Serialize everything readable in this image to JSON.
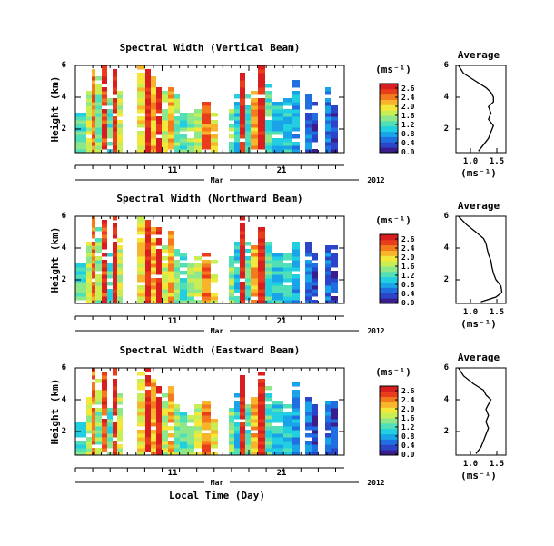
{
  "figure": {
    "xlabel": "Local Time (Day)"
  },
  "colorbar": {
    "unit_label": "(ms⁻¹)",
    "ticks": [
      "2.6",
      "2.4",
      "2.0",
      "1.6",
      "1.2",
      "0.8",
      "0.4",
      "0.0"
    ],
    "colors": [
      "#3b1c8c",
      "#2b45c8",
      "#1f6fe0",
      "#19a3e8",
      "#22cfe0",
      "#4fe0b8",
      "#8ee88a",
      "#c9ee55",
      "#f3e83a",
      "#f8b42a",
      "#f47a1e",
      "#ea3d1c",
      "#d81e1e"
    ]
  },
  "time_axis": {
    "ticks": [
      "11",
      "21"
    ],
    "month": "Mar",
    "year": "2012"
  },
  "chart_data": [
    {
      "type": "heatmap",
      "title": "Spectral Width (Vertical Beam)",
      "ylabel": "Height (km)",
      "y_ticks": [
        "6",
        "4",
        "2"
      ],
      "ylim": [
        0.5,
        6
      ],
      "xlim_days": [
        1,
        32
      ],
      "avg_profile": {
        "title": "Average",
        "xlabel": "(ms⁻¹)",
        "x_ticks": [
          "1.0",
          "1.5"
        ],
        "y_ticks": [
          "6",
          "4",
          "2"
        ],
        "height_km": [
          6.0,
          5.5,
          5.0,
          4.6,
          4.3,
          4.0,
          3.7,
          3.4,
          3.0,
          2.6,
          2.2,
          1.8,
          1.4,
          1.0,
          0.6
        ],
        "width_ms": [
          0.75,
          0.85,
          1.1,
          1.3,
          1.4,
          1.45,
          1.45,
          1.35,
          1.4,
          1.35,
          1.45,
          1.4,
          1.35,
          1.25,
          1.15
        ]
      }
    },
    {
      "type": "heatmap",
      "title": "Spectral Width (Northward Beam)",
      "ylabel": "Height (km)",
      "y_ticks": [
        "6",
        "4",
        "2"
      ],
      "ylim": [
        0.5,
        6
      ],
      "xlim_days": [
        1,
        32
      ],
      "avg_profile": {
        "title": "Average",
        "xlabel": "(ms⁻¹)",
        "x_ticks": [
          "1.0",
          "1.5"
        ],
        "y_ticks": [
          "6",
          "4",
          "2"
        ],
        "height_km": [
          6.0,
          5.5,
          5.0,
          4.6,
          4.3,
          4.0,
          3.6,
          3.2,
          2.8,
          2.4,
          2.0,
          1.6,
          1.2,
          0.9,
          0.6
        ],
        "width_ms": [
          0.75,
          0.9,
          1.1,
          1.25,
          1.3,
          1.32,
          1.35,
          1.4,
          1.42,
          1.45,
          1.5,
          1.6,
          1.62,
          1.5,
          1.2
        ]
      }
    },
    {
      "type": "heatmap",
      "title": "Spectral Width (Eastward Beam)",
      "ylabel": "Height (km)",
      "y_ticks": [
        "6",
        "4",
        "2"
      ],
      "ylim": [
        0.5,
        6
      ],
      "xlim_days": [
        1,
        32
      ],
      "avg_profile": {
        "title": "Average",
        "xlabel": "(ms⁻¹)",
        "x_ticks": [
          "1.0",
          "1.5"
        ],
        "y_ticks": [
          "6",
          "4",
          "2"
        ],
        "height_km": [
          6.0,
          5.5,
          5.0,
          4.6,
          4.3,
          4.0,
          3.7,
          3.4,
          3.0,
          2.6,
          2.2,
          1.8,
          1.4,
          1.0,
          0.6
        ],
        "width_ms": [
          0.75,
          0.85,
          1.05,
          1.25,
          1.3,
          1.4,
          1.35,
          1.3,
          1.35,
          1.3,
          1.35,
          1.3,
          1.25,
          1.2,
          1.1
        ]
      }
    }
  ]
}
